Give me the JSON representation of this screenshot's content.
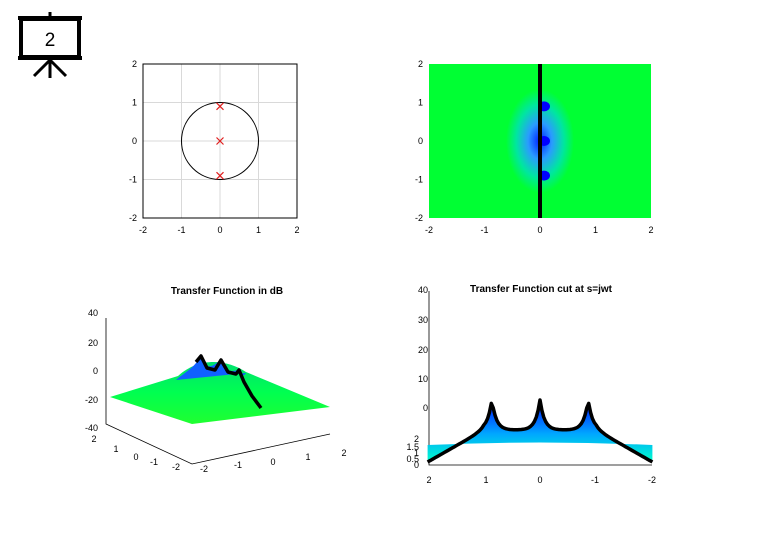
{
  "slide_number": "2",
  "colors": {
    "axis": "#000000",
    "grid": "#d9d9d9",
    "marker": "#e02020",
    "surface_low": "#00ff40",
    "surface_mid": "#00c8ff",
    "surface_high": "#0000ff",
    "cut_line": "#000000"
  },
  "icons": {
    "slide_badge": "projector-screen-icon"
  },
  "chart_data": [
    {
      "id": "pole-zero",
      "type": "scatter",
      "title": "",
      "xlabel": "",
      "ylabel": "",
      "xlim": [
        -2,
        2
      ],
      "ylim": [
        -2,
        2
      ],
      "x_ticks": [
        "-2",
        "-1",
        "0",
        "1",
        "2"
      ],
      "y_ticks": [
        "-2",
        "-1",
        "0",
        "1",
        "2"
      ],
      "grid": true,
      "unit_circle": true,
      "marker": "x",
      "points": [
        {
          "x": 0,
          "y": 0.9
        },
        {
          "x": 0,
          "y": 0
        },
        {
          "x": 0,
          "y": -0.9
        }
      ]
    },
    {
      "id": "magnitude-map",
      "type": "heatmap",
      "title": "",
      "xlabel": "",
      "ylabel": "",
      "xlim": [
        -2,
        2
      ],
      "ylim": [
        -2,
        2
      ],
      "x_ticks": [
        "-2",
        "-1",
        "0",
        "1",
        "2"
      ],
      "y_ticks": [
        "-2",
        "-1",
        "0",
        "1",
        "2"
      ],
      "poles": [
        {
          "x": 0,
          "y": 0.9
        },
        {
          "x": 0,
          "y": 0
        },
        {
          "x": 0,
          "y": -0.9
        }
      ],
      "cut_line_x": 0
    },
    {
      "id": "surface-3d",
      "type": "surface",
      "title": "Transfer Function in dB",
      "xlabel": "",
      "ylabel": "",
      "zlim": [
        -40,
        40
      ],
      "x_ticks": [
        "-2",
        "-1",
        "0",
        "1",
        "2"
      ],
      "y_ticks": [
        "2",
        "1",
        "0",
        "-1",
        "-2"
      ],
      "z_ticks": [
        "40",
        "20",
        "0",
        "-20",
        "-40"
      ],
      "poles": [
        {
          "x": 0,
          "y": 0.9
        },
        {
          "x": 0,
          "y": 0
        },
        {
          "x": 0,
          "y": -0.9
        }
      ]
    },
    {
      "id": "cut-3d",
      "type": "surface",
      "title": "Transfer Function cut at s=jwt",
      "xlabel": "",
      "ylabel": "",
      "x_ticks": [
        "2",
        "1",
        "0",
        "-1",
        "-2"
      ],
      "y_ticks": [
        "2",
        "1.5",
        "1",
        "0.5",
        "0"
      ],
      "z_ticks": [
        "40",
        "30",
        "20",
        "10",
        "0"
      ],
      "peaks_w": [
        0.9,
        0,
        -0.9
      ]
    }
  ]
}
